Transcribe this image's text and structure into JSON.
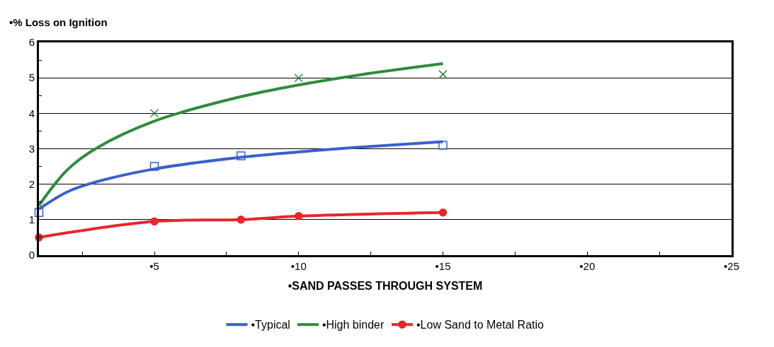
{
  "chart_data": {
    "type": "line",
    "ylabel": "•% Loss on Ignition",
    "xlabel": "•SAND PASSES THROUGH SYSTEM",
    "series": [
      {
        "type": "scatter",
        "color": "#3a5fcd",
        "marker": "square",
        "x": [
          1,
          5,
          8,
          15
        ],
        "values": [
          1.2,
          2.5,
          2.8,
          3.1
        ]
      },
      {
        "type": "scatter",
        "color": "#2e8b3e",
        "marker": "cross",
        "x": [
          5,
          10,
          15
        ],
        "values": [
          4.0,
          5.0,
          5.1
        ]
      },
      {
        "name": "•Typical",
        "color": "#3a5fcd",
        "marker": "none",
        "x": [
          1,
          2,
          3,
          5,
          8,
          10,
          12,
          15
        ],
        "values": [
          1.3,
          1.79,
          2.07,
          2.43,
          2.76,
          2.91,
          3.04,
          3.2
        ]
      },
      {
        "name": "•High binder",
        "color": "#2e8b3e",
        "marker": "none",
        "x": [
          1,
          2,
          3,
          5,
          8,
          10,
          12,
          15
        ],
        "values": [
          1.4,
          2.42,
          3.02,
          3.78,
          4.47,
          4.8,
          5.07,
          5.4
        ]
      },
      {
        "name": "•Low Sand to Metal Ratio",
        "color": "#e8262b",
        "marker": "circle",
        "x": [
          1,
          5,
          8,
          10,
          15
        ],
        "values": [
          0.5,
          0.95,
          1.0,
          1.1,
          1.2
        ]
      }
    ],
    "xlim": [
      1,
      25
    ],
    "xticks": [
      {
        "value": 2.5,
        "label": null
      },
      {
        "value": 5,
        "label": "•5"
      },
      {
        "value": 7.5,
        "label": null
      },
      {
        "value": 10,
        "label": "•10"
      },
      {
        "value": 12.5,
        "label": null
      },
      {
        "value": 15,
        "label": "•15"
      },
      {
        "value": 17.5,
        "label": null
      },
      {
        "value": 20,
        "label": "•20"
      },
      {
        "value": 22.5,
        "label": null
      },
      {
        "value": 25,
        "label": "•25"
      }
    ],
    "ylim": [
      0,
      6
    ],
    "yticks": [
      0,
      1,
      2,
      3,
      4,
      5,
      6
    ],
    "grid": "y",
    "legend": "bottom"
  }
}
